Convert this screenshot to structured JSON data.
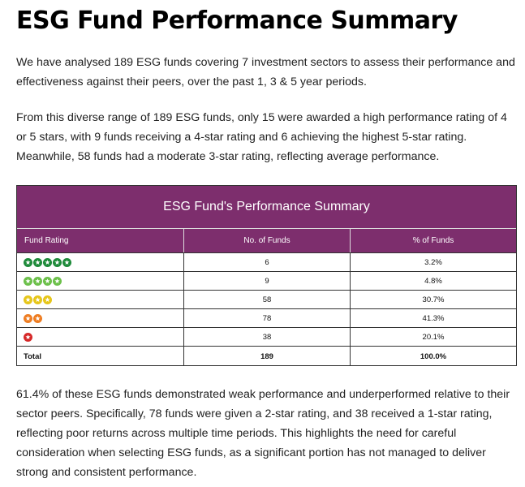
{
  "title": "ESG Fund Performance Summary",
  "paragraph1": "We have analysed 189 ESG funds covering 7 investment sectors to assess their performance and effectiveness against their peers, over the past 1, 3 & 5 year periods.",
  "paragraph2": "From this diverse range of 189 ESG funds, only 15 were awarded a high performance rating of 4 or 5 stars, with 9 funds receiving a 4-star rating and 6 achieving the highest 5-star rating. Meanwhile, 58 funds had a moderate 3-star rating, reflecting average performance.",
  "paragraph3": "61.4% of these ESG funds demonstrated weak performance and underperformed relative to their sector peers. Specifically, 78 funds were given a 2-star rating, and 38 received a 1-star rating, reflecting poor returns across multiple time periods. This highlights the need for careful consideration when selecting ESG funds, as a significant portion has not managed to deliver strong and consistent performance.",
  "table": {
    "title": "ESG Fund's Performance Summary",
    "headers": [
      "Fund Rating",
      "No. of Funds",
      "% of Funds"
    ],
    "header_color": "#7d2e6d",
    "rows": [
      {
        "stars": 5,
        "star_color": "#1e8a3a",
        "funds": "6",
        "percent": "3.2%"
      },
      {
        "stars": 4,
        "star_color": "#6cc04a",
        "funds": "9",
        "percent": "4.8%"
      },
      {
        "stars": 3,
        "star_color": "#e6c619",
        "funds": "58",
        "percent": "30.7%"
      },
      {
        "stars": 2,
        "star_color": "#ee7d22",
        "funds": "78",
        "percent": "41.3%"
      },
      {
        "stars": 1,
        "star_color": "#d62828",
        "funds": "38",
        "percent": "20.1%"
      }
    ],
    "total": {
      "label": "Total",
      "funds": "189",
      "percent": "100.0%"
    }
  }
}
